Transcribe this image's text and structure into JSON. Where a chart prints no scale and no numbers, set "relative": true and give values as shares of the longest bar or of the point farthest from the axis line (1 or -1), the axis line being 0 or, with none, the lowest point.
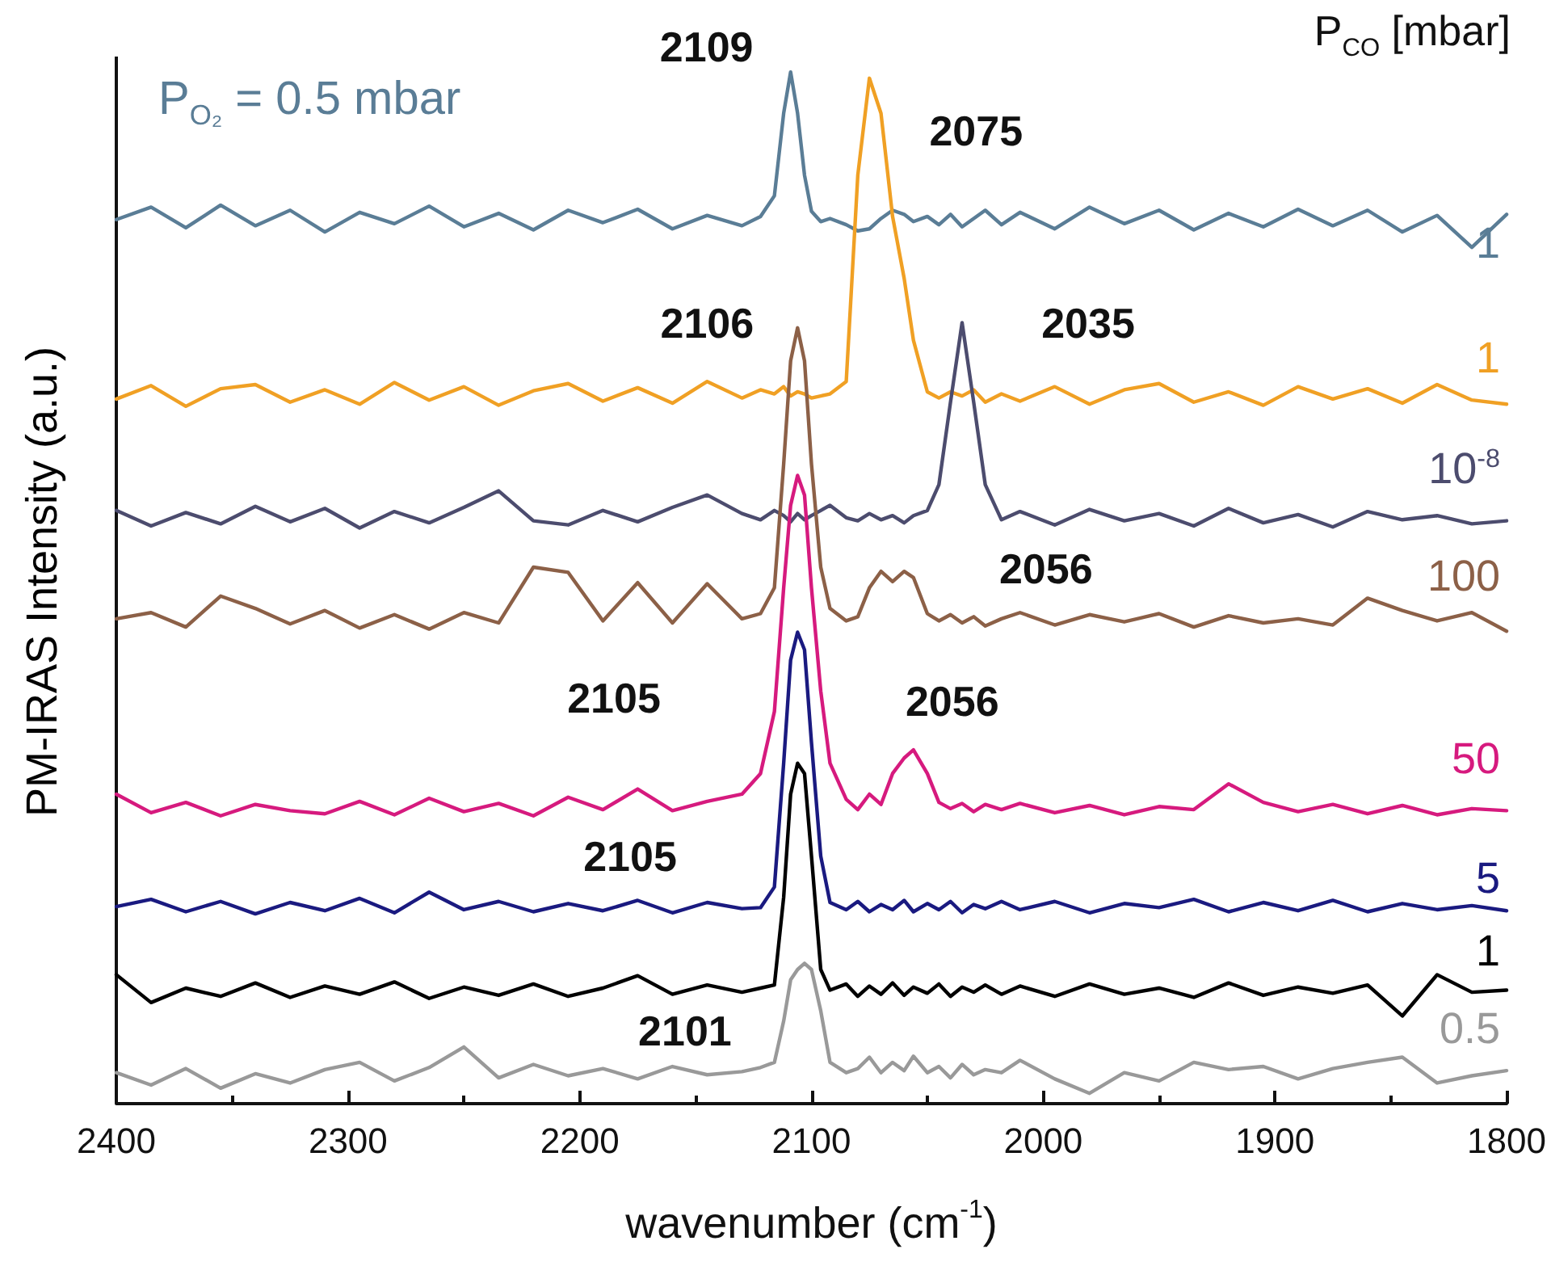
{
  "chart_data": {
    "type": "line",
    "relative": true,
    "xlabel": "wavenumber (cm$^{-1}$)",
    "ylabel": "PM-IRAS Intensity (a.u.)",
    "legend_title": "P$_{CO}$ [mbar]",
    "xlim": [
      2400,
      1800
    ],
    "xticks": [
      2400,
      2300,
      2200,
      2100,
      2000,
      1900,
      1800
    ],
    "grid": false,
    "legend": false,
    "marker": "none",
    "line_style": "solid",
    "x": [
      2400,
      2385,
      2370,
      2355,
      2340,
      2325,
      2310,
      2295,
      2280,
      2265,
      2250,
      2235,
      2220,
      2205,
      2190,
      2175,
      2160,
      2145,
      2130,
      2122,
      2116,
      2112,
      2109,
      2106,
      2103,
      2100,
      2096,
      2092,
      2085,
      2080,
      2075,
      2070,
      2065,
      2060,
      2056,
      2050,
      2045,
      2040,
      2035,
      2030,
      2025,
      2018,
      2010,
      1995,
      1980,
      1965,
      1950,
      1935,
      1920,
      1905,
      1890,
      1875,
      1860,
      1845,
      1830,
      1815,
      1800
    ],
    "series": [
      {
        "name": "1",
        "color": "#5a7d96",
        "values": [
          0.857,
          0.869,
          0.849,
          0.871,
          0.851,
          0.866,
          0.845,
          0.864,
          0.853,
          0.87,
          0.85,
          0.863,
          0.847,
          0.866,
          0.854,
          0.867,
          0.848,
          0.861,
          0.851,
          0.86,
          0.88,
          0.96,
          1.0,
          0.96,
          0.9,
          0.865,
          0.855,
          0.858,
          0.852,
          0.846,
          0.848,
          0.858,
          0.866,
          0.862,
          0.855,
          0.86,
          0.852,
          0.862,
          0.85,
          0.858,
          0.866,
          0.852,
          0.864,
          0.848,
          0.869,
          0.853,
          0.866,
          0.847,
          0.863,
          0.85,
          0.867,
          0.851,
          0.866,
          0.845,
          0.861,
          0.83,
          0.862
        ]
      },
      {
        "name": "1",
        "color": "#f0a024",
        "values": [
          0.683,
          0.696,
          0.676,
          0.693,
          0.697,
          0.68,
          0.692,
          0.678,
          0.699,
          0.682,
          0.695,
          0.677,
          0.691,
          0.698,
          0.681,
          0.694,
          0.679,
          0.7,
          0.684,
          0.692,
          0.688,
          0.695,
          0.686,
          0.69,
          0.688,
          0.684,
          0.686,
          0.688,
          0.7,
          0.9,
          0.994,
          0.96,
          0.86,
          0.8,
          0.74,
          0.69,
          0.684,
          0.69,
          0.686,
          0.692,
          0.68,
          0.688,
          0.681,
          0.695,
          0.678,
          0.692,
          0.698,
          0.68,
          0.69,
          0.677,
          0.695,
          0.683,
          0.693,
          0.679,
          0.697,
          0.682,
          0.678
        ]
      },
      {
        "name": "10$^{-8}$",
        "color": "#4c4c6e",
        "values": [
          0.575,
          0.56,
          0.573,
          0.562,
          0.579,
          0.564,
          0.577,
          0.558,
          0.574,
          0.563,
          0.578,
          0.594,
          0.565,
          0.561,
          0.575,
          0.564,
          0.578,
          0.59,
          0.572,
          0.566,
          0.575,
          0.57,
          0.564,
          0.572,
          0.566,
          0.57,
          0.575,
          0.58,
          0.568,
          0.565,
          0.572,
          0.566,
          0.57,
          0.563,
          0.57,
          0.575,
          0.6,
          0.68,
          0.757,
          0.68,
          0.6,
          0.566,
          0.574,
          0.561,
          0.576,
          0.565,
          0.572,
          0.56,
          0.577,
          0.563,
          0.571,
          0.559,
          0.574,
          0.566,
          0.57,
          0.562,
          0.565
        ]
      },
      {
        "name": "100",
        "color": "#8c6047",
        "values": [
          0.47,
          0.476,
          0.462,
          0.492,
          0.48,
          0.465,
          0.478,
          0.461,
          0.474,
          0.46,
          0.476,
          0.466,
          0.52,
          0.515,
          0.468,
          0.505,
          0.466,
          0.504,
          0.47,
          0.475,
          0.5,
          0.62,
          0.72,
          0.752,
          0.72,
          0.62,
          0.52,
          0.48,
          0.468,
          0.472,
          0.5,
          0.516,
          0.506,
          0.516,
          0.51,
          0.475,
          0.468,
          0.474,
          0.466,
          0.472,
          0.463,
          0.47,
          0.476,
          0.464,
          0.474,
          0.467,
          0.475,
          0.462,
          0.473,
          0.466,
          0.47,
          0.464,
          0.49,
          0.478,
          0.468,
          0.476,
          0.458
        ]
      },
      {
        "name": "50",
        "color": "#d61a7e",
        "values": [
          0.3,
          0.282,
          0.292,
          0.279,
          0.29,
          0.284,
          0.281,
          0.293,
          0.28,
          0.296,
          0.283,
          0.291,
          0.279,
          0.297,
          0.285,
          0.305,
          0.284,
          0.293,
          0.3,
          0.32,
          0.38,
          0.5,
          0.58,
          0.609,
          0.59,
          0.5,
          0.4,
          0.33,
          0.295,
          0.285,
          0.3,
          0.29,
          0.32,
          0.335,
          0.343,
          0.32,
          0.292,
          0.286,
          0.291,
          0.283,
          0.29,
          0.285,
          0.291,
          0.282,
          0.289,
          0.28,
          0.288,
          0.285,
          0.31,
          0.292,
          0.283,
          0.29,
          0.281,
          0.289,
          0.28,
          0.286,
          0.284
        ]
      },
      {
        "name": "5",
        "color": "#1a1a80",
        "values": [
          0.191,
          0.198,
          0.186,
          0.196,
          0.184,
          0.195,
          0.187,
          0.199,
          0.185,
          0.205,
          0.188,
          0.196,
          0.186,
          0.194,
          0.187,
          0.197,
          0.185,
          0.195,
          0.189,
          0.19,
          0.21,
          0.33,
          0.43,
          0.457,
          0.44,
          0.35,
          0.24,
          0.195,
          0.188,
          0.196,
          0.186,
          0.193,
          0.188,
          0.197,
          0.186,
          0.194,
          0.188,
          0.196,
          0.185,
          0.193,
          0.189,
          0.196,
          0.188,
          0.196,
          0.185,
          0.194,
          0.19,
          0.198,
          0.186,
          0.195,
          0.187,
          0.197,
          0.186,
          0.194,
          0.188,
          0.192,
          0.187
        ]
      },
      {
        "name": "1",
        "color": "#000000",
        "values": [
          0.125,
          0.098,
          0.112,
          0.104,
          0.117,
          0.103,
          0.114,
          0.106,
          0.118,
          0.102,
          0.113,
          0.105,
          0.116,
          0.104,
          0.112,
          0.124,
          0.106,
          0.115,
          0.108,
          0.112,
          0.115,
          0.2,
          0.3,
          0.33,
          0.32,
          0.24,
          0.13,
          0.11,
          0.116,
          0.104,
          0.114,
          0.106,
          0.117,
          0.105,
          0.113,
          0.107,
          0.116,
          0.104,
          0.113,
          0.108,
          0.115,
          0.106,
          0.114,
          0.104,
          0.116,
          0.106,
          0.112,
          0.103,
          0.117,
          0.105,
          0.113,
          0.107,
          0.115,
          0.085,
          0.125,
          0.108,
          0.11
        ]
      },
      {
        "name": "0.5",
        "color": "#999999",
        "values": [
          0.03,
          0.018,
          0.034,
          0.015,
          0.029,
          0.02,
          0.033,
          0.04,
          0.022,
          0.035,
          0.055,
          0.025,
          0.038,
          0.027,
          0.034,
          0.024,
          0.036,
          0.028,
          0.031,
          0.035,
          0.04,
          0.08,
          0.12,
          0.13,
          0.136,
          0.13,
          0.09,
          0.04,
          0.03,
          0.034,
          0.045,
          0.03,
          0.04,
          0.032,
          0.046,
          0.03,
          0.036,
          0.025,
          0.038,
          0.028,
          0.033,
          0.03,
          0.042,
          0.024,
          0.01,
          0.03,
          0.022,
          0.04,
          0.033,
          0.036,
          0.024,
          0.034,
          0.04,
          0.045,
          0.02,
          0.027,
          0.032
        ]
      }
    ],
    "annotations": [
      "P$_{O₂}$ = 0.5 mbar",
      {
        "text": "2109",
        "x": 2109,
        "y": 1.0
      },
      {
        "text": "2075",
        "x": 2075,
        "y": 0.994
      },
      {
        "text": "2106",
        "x": 2106,
        "y": 0.752
      },
      {
        "text": "2035",
        "x": 2035,
        "y": 0.757
      },
      {
        "text": "2056",
        "x": 2056,
        "y": 0.51
      },
      "2105",
      {
        "text": "2056",
        "x": 2056,
        "y": 0.343
      },
      "2105",
      {
        "text": "2101",
        "x": 2103,
        "y": 0.136
      }
    ]
  }
}
